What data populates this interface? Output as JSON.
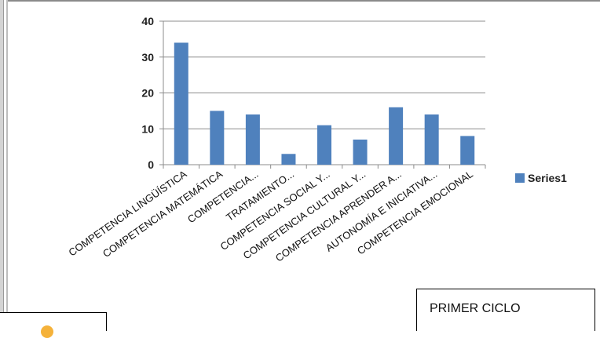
{
  "chart_data": {
    "type": "bar",
    "categories": [
      "COMPETENCIA LINGÜÍSTICA",
      "COMPETENCIA MATEMÁTICA",
      "COMPETENCIA...",
      "TRATAMIENTO...",
      "COMPETENCIA SOCIAL Y...",
      "COMPETENCIA CULTURAL Y...",
      "COMPETENCIA APRENDER A...",
      "AUTONOMÍA E INICIATIVA...",
      "COMPETENCIA EMOCIONAL"
    ],
    "series": [
      {
        "name": "Series1",
        "values": [
          34,
          15,
          14,
          3,
          11,
          7,
          16,
          14,
          8
        ],
        "color": "#4f81bd"
      }
    ],
    "ylim": [
      0,
      40
    ],
    "yticks": [
      0,
      10,
      20,
      30,
      40
    ],
    "grid": true,
    "legend": "right"
  },
  "text_box": {
    "label": "PRIMER CICLO"
  },
  "icons": {
    "orange_dot": "orange-circle-icon"
  }
}
